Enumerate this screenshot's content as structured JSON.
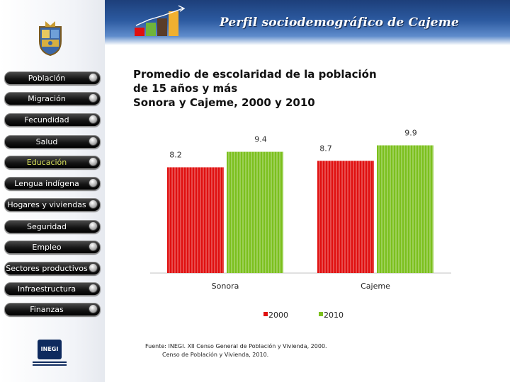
{
  "header": {
    "title": "Perfil sociodemográfico de Cajeme"
  },
  "sidebar": {
    "items": [
      {
        "label": "Población"
      },
      {
        "label": "Migración"
      },
      {
        "label": "Fecundidad"
      },
      {
        "label": "Salud"
      },
      {
        "label": "Educación",
        "active": true
      },
      {
        "label": "Lengua indígena"
      },
      {
        "label": "Hogares y viviendas"
      },
      {
        "label": "Seguridad"
      },
      {
        "label": "Empleo"
      },
      {
        "label": "Sectores productivos"
      },
      {
        "label": "Infraestructura"
      },
      {
        "label": "Finanzas"
      }
    ]
  },
  "main": {
    "heading_lines": [
      "Promedio de escolaridad de la población",
      "de 15 años y más",
      "Sonora y Cajeme, 2000 y 2010"
    ],
    "source_lines": [
      "Fuente: INEGI. XII Censo General de Población y Vivienda, 2000.",
      "Censo de Población y Vivienda, 2010."
    ]
  },
  "logo": {
    "text": "INEGI"
  },
  "chart_data": {
    "type": "bar",
    "title": "",
    "categories": [
      "Sonora",
      "Cajeme"
    ],
    "series": [
      {
        "name": "2000",
        "values": [
          8.2,
          8.7
        ],
        "color": "#e01010"
      },
      {
        "name": "2010",
        "values": [
          9.4,
          9.9
        ],
        "color": "#7cc01e"
      }
    ],
    "ylim": [
      0,
      10.2
    ],
    "grid": false,
    "legend": "bottom"
  }
}
